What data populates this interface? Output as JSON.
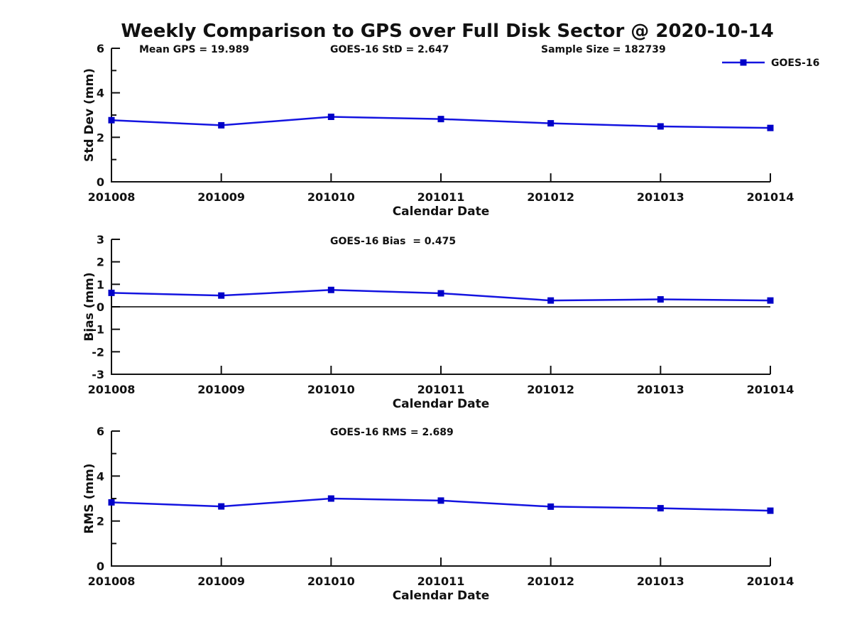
{
  "title": "Weekly Comparison to GPS over Full Disk Sector @ 2020-10-14",
  "legend": {
    "label": "GOES-16",
    "position": "top-right",
    "style": "line-with-square-marker"
  },
  "colors": {
    "line": "#1414e0",
    "marker": "#0000c8",
    "axis": "#111111",
    "zero_line": "#000000",
    "background": "#ffffff"
  },
  "chart_data": [
    {
      "type": "line",
      "id": "std-dev",
      "title": "",
      "annotations": [
        "Mean GPS = 19.989",
        "GOES-16 StD = 2.647",
        "Sample Size = 182739"
      ],
      "xlabel": "Calendar Date",
      "ylabel": "Std Dev (mm)",
      "ylim": [
        0,
        6
      ],
      "yticks": [
        0,
        2,
        4,
        6
      ],
      "yticks_minor": [
        1,
        3,
        5
      ],
      "grid": false,
      "categories": [
        "201008",
        "201009",
        "201010",
        "201011",
        "201012",
        "201013",
        "201014"
      ],
      "series": [
        {
          "name": "GOES-16",
          "values": [
            2.77,
            2.54,
            2.92,
            2.82,
            2.63,
            2.49,
            2.42
          ]
        }
      ]
    },
    {
      "type": "line",
      "id": "bias",
      "title": "",
      "annotations": [
        "GOES-16 Bias  = 0.475"
      ],
      "xlabel": "Calendar Date",
      "ylabel": "Bias (mm)",
      "ylim": [
        -3,
        3
      ],
      "yticks": [
        -3,
        -2,
        -1,
        0,
        1,
        2,
        3
      ],
      "yticks_minor": [],
      "zero_line": true,
      "grid": false,
      "categories": [
        "201008",
        "201009",
        "201010",
        "201011",
        "201012",
        "201013",
        "201014"
      ],
      "series": [
        {
          "name": "GOES-16",
          "values": [
            0.62,
            0.5,
            0.75,
            0.6,
            0.28,
            0.33,
            0.28
          ]
        }
      ]
    },
    {
      "type": "line",
      "id": "rms",
      "title": "",
      "annotations": [
        "GOES-16 RMS = 2.689"
      ],
      "xlabel": "Calendar Date",
      "ylabel": "RMS (mm)",
      "ylim": [
        0,
        6
      ],
      "yticks": [
        0,
        2,
        4,
        6
      ],
      "yticks_minor": [
        1,
        3,
        5
      ],
      "grid": false,
      "categories": [
        "201008",
        "201009",
        "201010",
        "201011",
        "201012",
        "201013",
        "201014"
      ],
      "series": [
        {
          "name": "GOES-16",
          "values": [
            2.83,
            2.65,
            3.0,
            2.91,
            2.64,
            2.57,
            2.46
          ]
        }
      ]
    }
  ]
}
